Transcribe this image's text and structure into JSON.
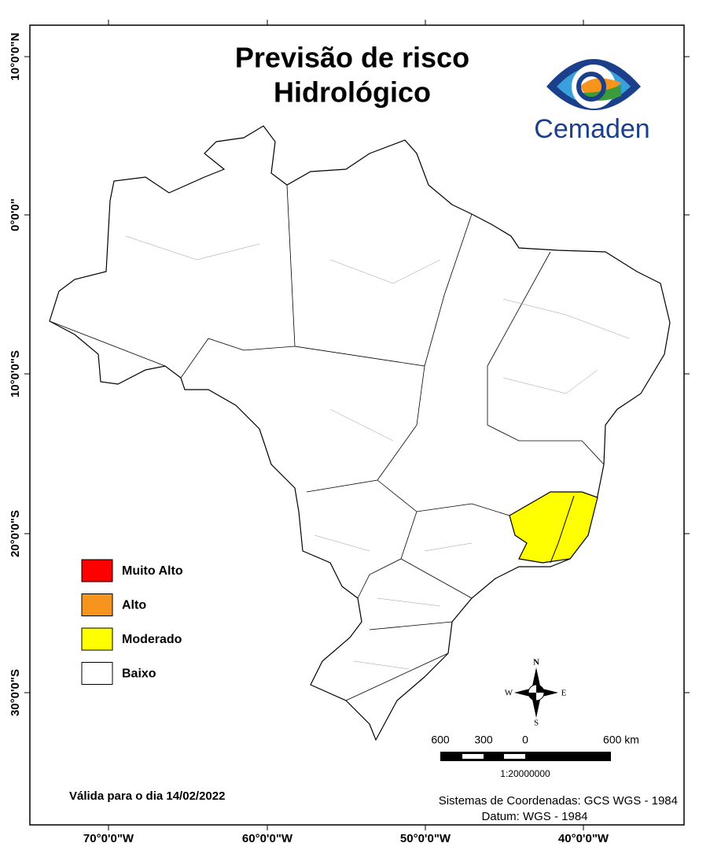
{
  "title": {
    "line1": "Previsão de risco",
    "line2": "Hidrológico"
  },
  "logo": "Cemaden",
  "legend": [
    {
      "label": "Muito Alto",
      "color": "#ff0000"
    },
    {
      "label": "Alto",
      "color": "#f7941d"
    },
    {
      "label": "Moderado",
      "color": "#ffff00"
    },
    {
      "label": "Baixo",
      "color": "#ffffff"
    }
  ],
  "axes": {
    "left": [
      "10°0'0\"N",
      "0°0'0\"",
      "10°0'0\"S",
      "20°0'0\"S",
      "30°0'0\"S"
    ],
    "bottom": [
      "70°0'0\"W",
      "60°0'0\"W",
      "50°0'0\"W",
      "40°0'0\"W"
    ]
  },
  "compass": {
    "n": "N",
    "s": "S",
    "e": "E",
    "w": "W"
  },
  "scale": {
    "labels": [
      "600",
      "300",
      "0",
      "600 km"
    ],
    "ratio": "1:20000000"
  },
  "validity": "Válida para o dia 14/02/2022",
  "crs": {
    "system": "Sistemas de Coordenadas: GCS WGS - 1984",
    "datum": "Datum: WGS - 1984"
  }
}
